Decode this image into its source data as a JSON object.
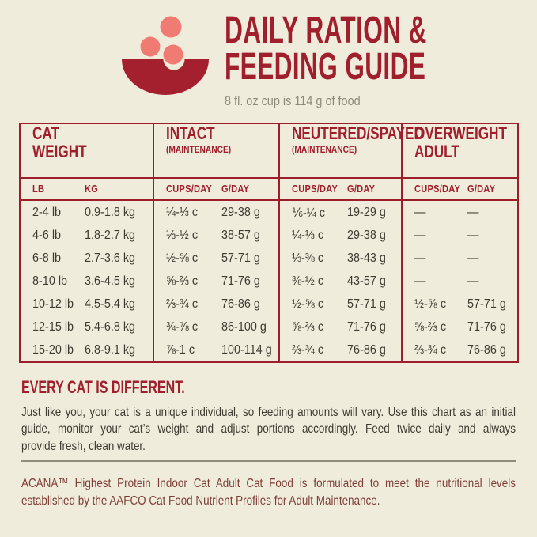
{
  "header": {
    "title_line1": "DAILY RATION &",
    "title_line2": "FEEDING GUIDE",
    "subtitle": "8 fl. oz cup is 114 g of food"
  },
  "colors": {
    "background": "#EFECDC",
    "brand_red": "#A01F2D",
    "table_border_red": "#9C1E2B",
    "kibble_salmon": "#F07B72",
    "body_text": "#3E3B31",
    "subtitle_gray": "#8E8A7A",
    "footnote_maroon": "#7D3E36",
    "divider_gray": "#8D8D80"
  },
  "icons": {
    "bowl": "food-bowl-with-kibble-icon"
  },
  "table": {
    "groups": [
      {
        "lines": [
          "CAT",
          "WEIGHT"
        ],
        "note": "",
        "col1": "LB",
        "col2": "KG"
      },
      {
        "lines": [
          "INTACT"
        ],
        "note": "(MAINTENANCE)",
        "col1": "CUPS/DAY",
        "col2": "G/DAY"
      },
      {
        "lines": [
          "NEUTERED/SPAYED"
        ],
        "note": "(MAINTENANCE)",
        "col1": "CUPS/DAY",
        "col2": "G/DAY"
      },
      {
        "lines": [
          "OVERWEIGHT",
          "ADULT"
        ],
        "note": "",
        "col1": "CUPS/DAY",
        "col2": "G/DAY"
      }
    ],
    "rows": [
      [
        "2-4 lb",
        "0.9-1.8 kg",
        "¼-⅓ c",
        "29-38 g",
        "⅙-¼ c",
        "19-29 g",
        "—",
        "—"
      ],
      [
        "4-6 lb",
        "1.8-2.7 kg",
        "⅓-½ c",
        "38-57 g",
        "¼-⅓ c",
        "29-38 g",
        "—",
        "—"
      ],
      [
        "6-8 lb",
        "2.7-3.6 kg",
        "½-⅝ c",
        "57-71 g",
        "⅓-⅜ c",
        "38-43 g",
        "—",
        "—"
      ],
      [
        "8-10 lb",
        "3.6-4.5 kg",
        "⅝-⅔ c",
        "71-76 g",
        "⅜-½ c",
        "43-57 g",
        "—",
        "—"
      ],
      [
        "10-12 lb",
        "4.5-5.4 kg",
        "⅔-¾ c",
        "76-86 g",
        "½-⅝ c",
        "57-71 g",
        "½-⅝ c",
        "57-71 g"
      ],
      [
        "12-15 lb",
        "5.4-6.8 kg",
        "¾-⅞ c",
        "86-100 g",
        "⅝-⅔ c",
        "71-76 g",
        "⅝-⅔ c",
        "71-76 g"
      ],
      [
        "15-20 lb",
        "6.8-9.1 kg",
        "⅞-1 c",
        "100-114 g",
        "⅔-¾ c",
        "76-86 g",
        "⅔-¾ c",
        "76-86 g"
      ]
    ]
  },
  "section": {
    "heading": "EVERY CAT IS DIFFERENT.",
    "line1": "Just like you, your cat is a unique individual, so feeding amounts will vary. Use this chart as an initial",
    "line2": "guide, monitor your cat’s weight and adjust portions accordingly. Feed twice daily and always",
    "line3": "provide fresh, clean water."
  },
  "footnote": {
    "line1": "ACANA™ Highest Protein Indoor Cat Adult Cat Food is formulated to meet the nutritional levels",
    "line2": "established by the AAFCO Cat Food Nutrient Profiles for Adult Maintenance."
  }
}
